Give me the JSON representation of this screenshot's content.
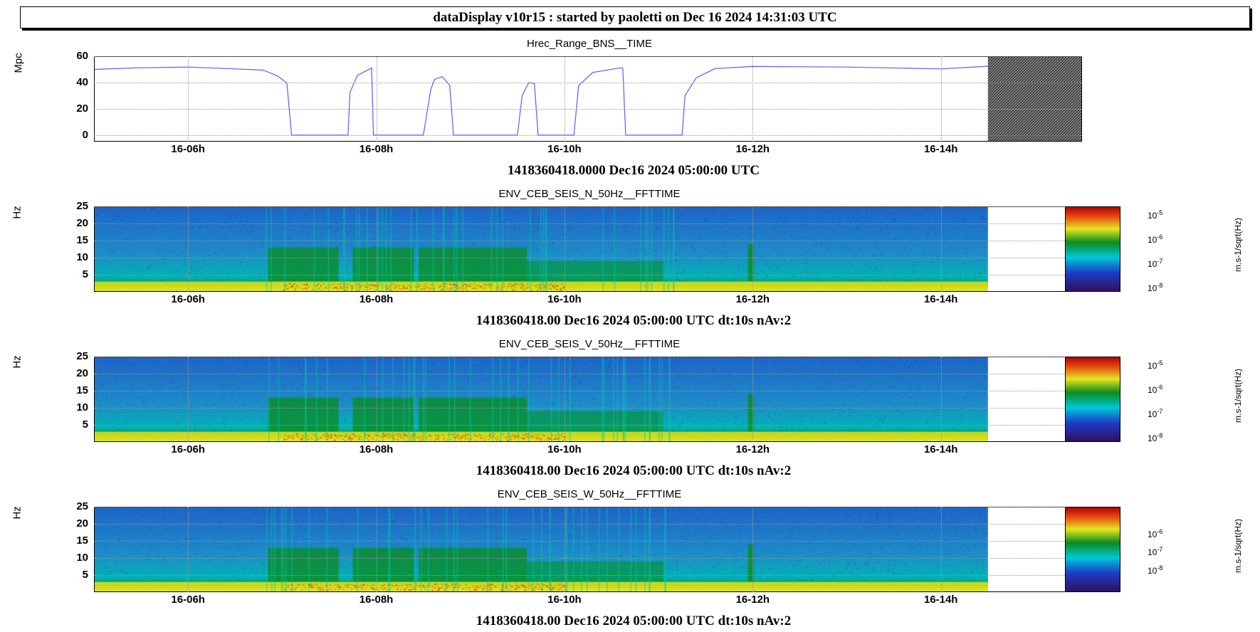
{
  "banner": "dataDisplay v10r15 : started by paoletti on Dec 16 2024 14:31:03 UTC",
  "plots": [
    {
      "title": "Hrec_Range_BNS__TIME",
      "ylabel": "Mpc",
      "footer": "1418360418.0000 Dec16 2024 05:00:00 UTC"
    },
    {
      "title": "ENV_CEB_SEIS_N_50Hz__FFTTIME",
      "ylabel": "Hz",
      "footer": "1418360418.00 Dec16 2024 05:00:00 UTC dt:10s nAv:2",
      "colorbar_unit": "m.s-1/sqrt(Hz)"
    },
    {
      "title": "ENV_CEB_SEIS_V_50Hz__FFTTIME",
      "ylabel": "Hz",
      "footer": "1418360418.00 Dec16 2024 05:00:00 UTC dt:10s nAv:2",
      "colorbar_unit": "m.s-1/sqrt(Hz)"
    },
    {
      "title": "ENV_CEB_SEIS_W_50Hz__FFTTIME",
      "ylabel": "Hz",
      "footer": "1418360418.00 Dec16 2024 05:00:00 UTC dt:10s nAv:2",
      "colorbar_unit": "m.s-1/sqrt(Hz)"
    }
  ],
  "x_tick_labels": [
    "16-06h",
    "16-08h",
    "16-10h",
    "16-12h",
    "16-14h"
  ],
  "range_y_ticks": [
    "0",
    "20",
    "40",
    "60"
  ],
  "freq_y_ticks": [
    "5",
    "10",
    "15",
    "20",
    "25"
  ],
  "colorbar_exponents": {
    "n": [
      "-5",
      "-6",
      "-7",
      "-8"
    ],
    "v": [
      "-5",
      "-6",
      "-7",
      "-8"
    ],
    "w": [
      "-6",
      "-7",
      "-8"
    ]
  },
  "colors": {
    "line": "#5a5aff",
    "spectro_low": "#1e64c8",
    "spectro_mid": "#00b4b4",
    "spectro_green": "#0a8c1e",
    "spectro_yellow": "#e6e61e",
    "spectro_red": "#e61414"
  },
  "chart_data": [
    {
      "type": "line",
      "title": "Hrec_Range_BNS__TIME",
      "xlabel": "",
      "ylabel": "Mpc",
      "x_unit": "hour of Dec 16 2024 UTC",
      "xlim": [
        5.0,
        15.5
      ],
      "ylim": [
        -5,
        60
      ],
      "grid": true,
      "series": [
        {
          "x": [
            5.0,
            5.5,
            6.0,
            6.5,
            6.8,
            6.95,
            7.05,
            7.1,
            7.12,
            7.7,
            7.72,
            7.8,
            7.95,
            7.97,
            8.05,
            8.5,
            8.58,
            8.62,
            8.7,
            8.78,
            8.82,
            9.5,
            9.55,
            9.62,
            9.68,
            9.72,
            10.1,
            10.15,
            10.3,
            10.6,
            10.62,
            10.65,
            11.25,
            11.28,
            11.4,
            11.6,
            12.0,
            13.0,
            14.0,
            14.5
          ],
          "y": [
            50,
            51,
            52,
            51,
            49,
            45,
            40,
            0,
            0,
            0,
            33,
            45,
            51,
            0,
            0,
            0,
            35,
            43,
            44,
            38,
            0,
            0,
            30,
            40,
            40,
            0,
            0,
            38,
            47,
            51,
            51,
            0,
            0,
            30,
            44,
            50,
            52,
            52,
            51,
            52
          ]
        }
      ],
      "no_data_after": 14.5
    },
    {
      "type": "heatmap",
      "title": "ENV_CEB_SEIS_N_50Hz__FFTTIME",
      "ylabel": "Hz",
      "ylim": [
        0,
        25
      ],
      "xlim": [
        5.0,
        15.5
      ],
      "no_data_after": 14.5,
      "colorbar": {
        "unit": "m.s-1/sqrt(Hz)",
        "log": true,
        "range": [
          1e-08,
          1e-05
        ]
      }
    },
    {
      "type": "heatmap",
      "title": "ENV_CEB_SEIS_V_50Hz__FFTTIME",
      "ylabel": "Hz",
      "ylim": [
        0,
        25
      ],
      "xlim": [
        5.0,
        15.5
      ],
      "no_data_after": 14.5,
      "colorbar": {
        "unit": "m.s-1/sqrt(Hz)",
        "log": true,
        "range": [
          1e-08,
          1e-05
        ]
      }
    },
    {
      "type": "heatmap",
      "title": "ENV_CEB_SEIS_W_50Hz__FFTTIME",
      "ylabel": "Hz",
      "ylim": [
        0,
        25
      ],
      "xlim": [
        5.0,
        15.5
      ],
      "no_data_after": 14.5,
      "colorbar": {
        "unit": "m.s-1/sqrt(Hz)",
        "log": true,
        "range": [
          1e-08,
          1e-06
        ]
      }
    }
  ]
}
